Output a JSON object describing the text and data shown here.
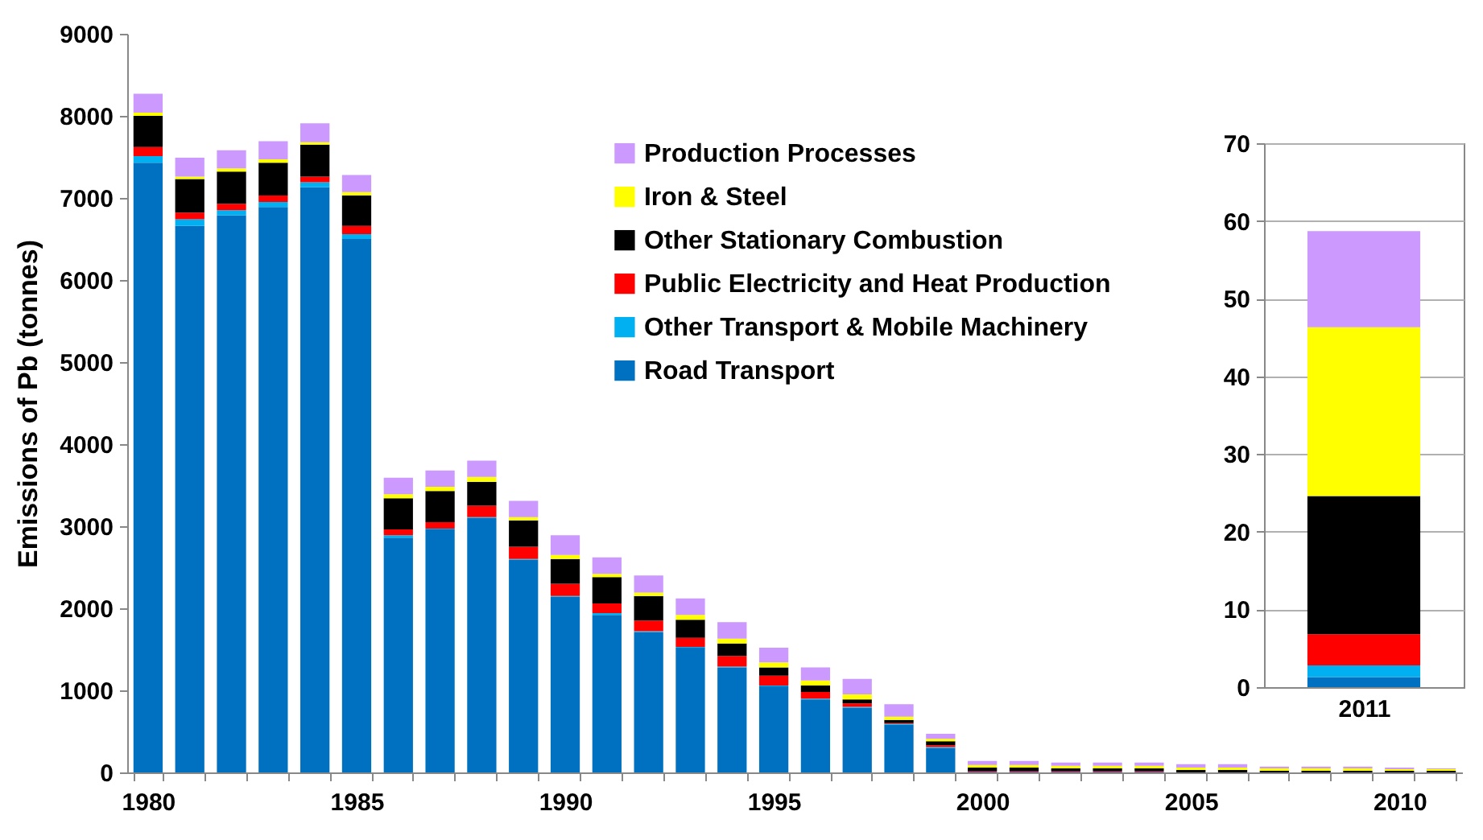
{
  "chart_data": [
    {
      "type": "bar",
      "stacked": true,
      "ylabel": "Emissions of Pb (tonnes)",
      "ylim": [
        0,
        9000
      ],
      "yticks": [
        0,
        1000,
        2000,
        3000,
        4000,
        5000,
        6000,
        7000,
        8000,
        9000
      ],
      "legend": "top",
      "grid": false,
      "categories": [
        "1980",
        null,
        null,
        null,
        null,
        "1985",
        null,
        null,
        null,
        null,
        "1990",
        null,
        null,
        null,
        null,
        "1995",
        null,
        null,
        null,
        null,
        "2000",
        null,
        null,
        null,
        null,
        "2005",
        null,
        null,
        null,
        null,
        "2010",
        null
      ],
      "series": [
        {
          "name": "Road Transport",
          "color": "#0070c0",
          "values": [
            7430,
            6660,
            6790,
            6890,
            7130,
            6500,
            2860,
            2960,
            3100,
            2590,
            2140,
            1920,
            1710,
            1520,
            1280,
            1050,
            890,
            790,
            580,
            300,
            10,
            10,
            10,
            10,
            10,
            0,
            0,
            0,
            0,
            0,
            0,
            0
          ]
        },
        {
          "name": "Other Transport & Mobile Machinery",
          "color": "#00b0f0",
          "values": [
            80,
            80,
            60,
            60,
            60,
            60,
            30,
            10,
            10,
            10,
            10,
            20,
            10,
            10,
            10,
            10,
            10,
            10,
            10,
            10,
            0,
            0,
            0,
            0,
            0,
            0,
            0,
            0,
            0,
            0,
            0,
            0
          ]
        },
        {
          "name": "Public Electricity and Heat Production",
          "color": "#ff0000",
          "values": [
            110,
            80,
            80,
            80,
            70,
            100,
            70,
            80,
            140,
            150,
            150,
            120,
            130,
            110,
            130,
            120,
            80,
            40,
            10,
            20,
            10,
            10,
            10,
            10,
            10,
            0,
            0,
            0,
            0,
            0,
            0,
            0
          ]
        },
        {
          "name": "Other Stationary Combustion",
          "color": "#000000",
          "values": [
            380,
            410,
            390,
            400,
            390,
            370,
            380,
            380,
            290,
            320,
            300,
            320,
            300,
            220,
            150,
            100,
            80,
            50,
            40,
            50,
            40,
            40,
            30,
            30,
            30,
            30,
            30,
            20,
            20,
            20,
            20,
            20
          ]
        },
        {
          "name": "Iron & Steel",
          "color": "#ffff00",
          "values": [
            40,
            30,
            40,
            40,
            30,
            40,
            50,
            50,
            60,
            40,
            50,
            40,
            40,
            60,
            60,
            60,
            60,
            60,
            40,
            30,
            30,
            30,
            30,
            30,
            30,
            30,
            30,
            30,
            30,
            30,
            20,
            20
          ]
        },
        {
          "name": "Production Processes",
          "color": "#cc99ff",
          "values": [
            230,
            230,
            220,
            220,
            230,
            210,
            200,
            200,
            200,
            200,
            240,
            200,
            210,
            200,
            200,
            180,
            160,
            190,
            150,
            60,
            50,
            50,
            40,
            40,
            40,
            40,
            40,
            20,
            20,
            20,
            20,
            10
          ]
        }
      ]
    },
    {
      "type": "bar",
      "stacked": true,
      "ylim": [
        0,
        70
      ],
      "yticks": [
        0,
        10,
        20,
        30,
        40,
        50,
        60,
        70
      ],
      "grid": "y",
      "categories": [
        "2011"
      ],
      "series": [
        {
          "color": "#0070c0",
          "values": [
            1.3
          ]
        },
        {
          "color": "#00b0f0",
          "values": [
            1.5
          ]
        },
        {
          "color": "#ff0000",
          "values": [
            4.0
          ]
        },
        {
          "color": "#000000",
          "values": [
            17.8
          ]
        },
        {
          "color": "#ffff00",
          "values": [
            21.7
          ]
        },
        {
          "color": "#cc99ff",
          "values": [
            12.4
          ]
        }
      ]
    }
  ]
}
